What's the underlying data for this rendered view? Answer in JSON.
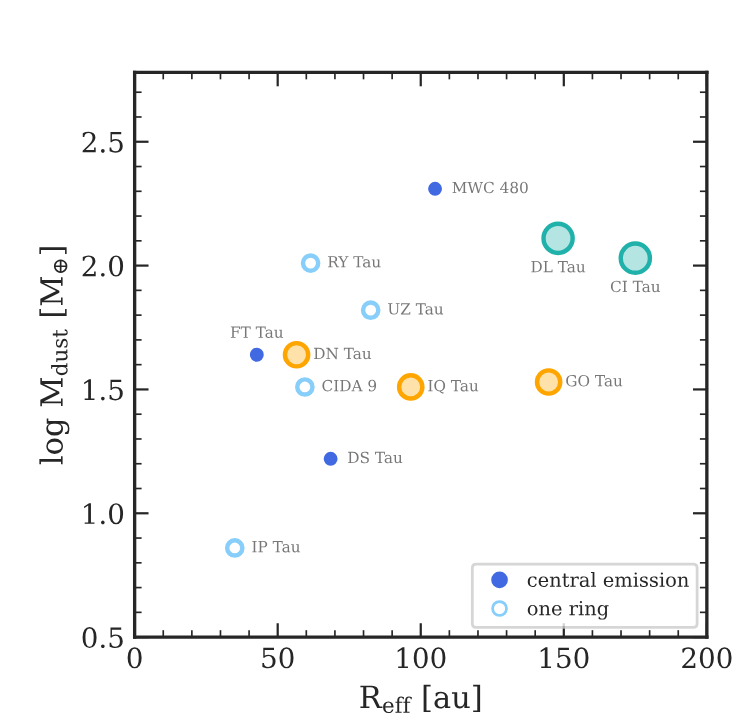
{
  "chart_data": {
    "type": "scatter",
    "xlabel": "R$_{eff}$ [au]",
    "ylabel": "log M$_{dust}$ [M$_{⊕}$]",
    "xlim": [
      0,
      200
    ],
    "xticks": [
      0,
      50,
      100,
      150,
      200
    ],
    "ylim": [
      0.5,
      2.78
    ],
    "yticks": [
      {
        "value": 0.5,
        "label": "0.5"
      },
      {
        "value": 1.0,
        "label": "1.0"
      },
      {
        "value": 1.5,
        "label": "1.5"
      },
      {
        "value": 2.0,
        "label": "2.0"
      },
      {
        "value": 2.5,
        "label": "2.5"
      }
    ],
    "series": [
      {
        "name": "central emission",
        "color": "#4169e1",
        "marker": "circle",
        "x": [
          105,
          42.7,
          68.5
        ],
        "values": [
          2.31,
          1.64,
          1.22
        ]
      },
      {
        "name": "one ring",
        "color": "#87cefa",
        "marker": "circle",
        "x": [
          61.5,
          82.5,
          59.5,
          35
        ],
        "values": [
          2.01,
          1.82,
          1.51,
          0.86
        ]
      },
      {
        "color": "#ffa500",
        "marker": "circle",
        "x": [
          56.6,
          96.5,
          144.7
        ],
        "values": [
          1.64,
          1.51,
          1.53
        ]
      },
      {
        "color": "#20b2aa",
        "marker": "circle",
        "x": [
          148,
          175
        ],
        "values": [
          2.11,
          2.03
        ]
      }
    ],
    "annotations": [
      {
        "text": "MWC 480",
        "x": 105,
        "y": 2.31
      },
      {
        "text": "DL Tau",
        "x": 148,
        "y": 2.11
      },
      {
        "text": "CI Tau",
        "x": 175,
        "y": 2.03
      },
      {
        "text": "RY Tau",
        "x": 61.5,
        "y": 2.01
      },
      {
        "text": "UZ Tau",
        "x": 82.5,
        "y": 1.82
      },
      {
        "text": "FT Tau",
        "x": 42.7,
        "y": 1.64
      },
      {
        "text": "DN Tau",
        "x": 56.6,
        "y": 1.64
      },
      {
        "text": "CIDA 9",
        "x": 59.5,
        "y": 1.51
      },
      {
        "text": "IQ Tau",
        "x": 96.5,
        "y": 1.51
      },
      {
        "text": "GO Tau",
        "x": 144.7,
        "y": 1.53
      },
      {
        "text": "DS Tau",
        "x": 68.5,
        "y": 1.22
      },
      {
        "text": "IP Tau",
        "x": 35,
        "y": 0.86
      }
    ],
    "grid": false,
    "legend": "bottom right"
  }
}
